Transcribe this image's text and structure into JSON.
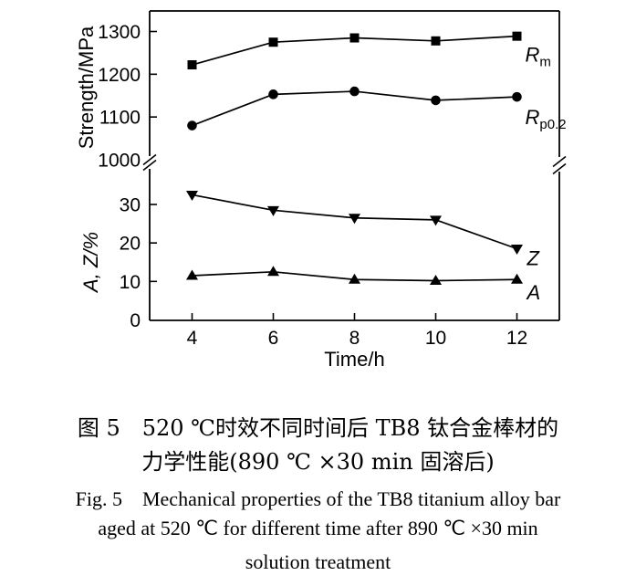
{
  "chart_data": {
    "type": "line",
    "title": "",
    "xlabel": "Time/h",
    "x": [
      4,
      6,
      8,
      10,
      12
    ],
    "x_ticks": [
      4,
      6,
      8,
      10,
      12
    ],
    "axis_break": true,
    "grid": false,
    "legend_position": "inline-right",
    "axes": {
      "top": {
        "ylabel": "Strength/MPa",
        "ticks": [
          1000,
          1100,
          1200,
          1300
        ],
        "range": [
          1000,
          1350
        ],
        "break_value": 1000
      },
      "bottom": {
        "ylabel": "A, Z/%",
        "ticks": [
          0,
          10,
          20,
          30
        ],
        "range": [
          0,
          37
        ],
        "no_tick_mark_at": 0
      }
    },
    "series": [
      {
        "name": "Rm",
        "label_main": "R",
        "label_sub": "m",
        "axis": "top",
        "marker": "square",
        "values": [
          1222,
          1275,
          1285,
          1278,
          1289
        ],
        "label_dx": 9,
        "label_dy": 28
      },
      {
        "name": "Rp0.2",
        "label_main": "R",
        "label_sub": "p0.2",
        "axis": "top",
        "marker": "circle",
        "values": [
          1080,
          1153,
          1160,
          1139,
          1147
        ],
        "label_dx": 9,
        "label_dy": 30
      },
      {
        "name": "Z",
        "label_main": "Z",
        "label_sub": "",
        "axis": "bottom",
        "marker": "triangle-down",
        "values": [
          32.5,
          28.5,
          26.5,
          26,
          18.5
        ],
        "label_dx": 11,
        "label_dy": 18
      },
      {
        "name": "A",
        "label_main": "A",
        "label_sub": "",
        "axis": "bottom",
        "marker": "triangle-up",
        "values": [
          11.5,
          12.5,
          10.5,
          10.2,
          10.5
        ],
        "label_dx": 11,
        "label_dy": 22
      }
    ]
  },
  "caption": {
    "zh_line1": "图 5　520 ℃时效不同时间后 TB8 钛合金棒材的",
    "zh_line2": "力学性能(890 ℃ ×30 min 固溶后)",
    "en_line1": "Fig. 5　Mechanical properties of the TB8 titanium alloy bar",
    "en_line2": "aged at 520 ℃ for different time after 890 ℃ ×30 min",
    "en_line3": "solution treatment"
  },
  "colors": {
    "foreground": "#000000",
    "background": "#ffffff"
  }
}
